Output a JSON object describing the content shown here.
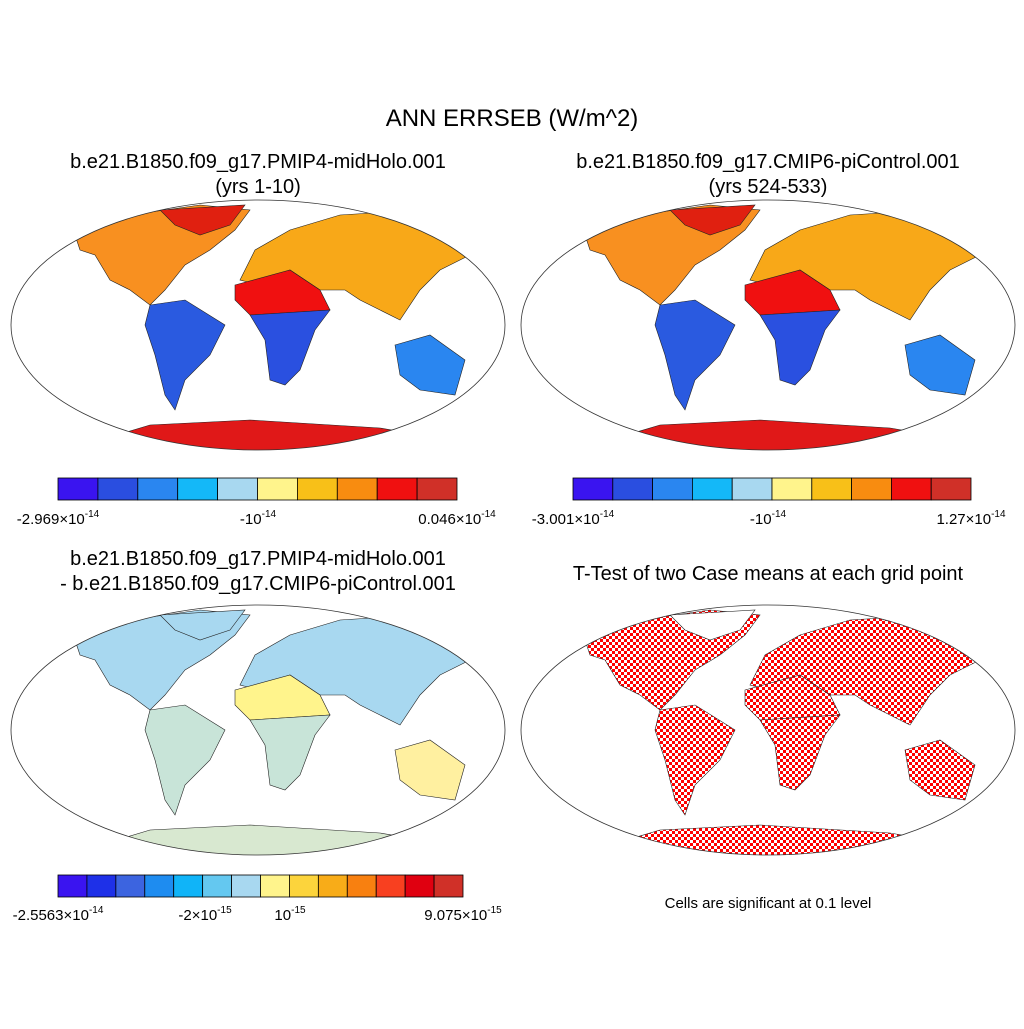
{
  "title": "ANN ERRSEB (W/m^2)",
  "panels": [
    {
      "title_lines": [
        "b.e21.B1850.f09_g17.PMIP4-midHolo.001",
        "(yrs 1-10)"
      ],
      "colorbar": {
        "colors": [
          "#3a14f0",
          "#2a4ee0",
          "#2a86f0",
          "#14b8f8",
          "#a8d8f0",
          "#fff48c",
          "#f8c018",
          "#f88c10",
          "#f01010",
          "#d03028"
        ],
        "labels": [
          {
            "base": "-2.969×10",
            "exp": "-14"
          },
          {
            "base": "-10",
            "exp": "-14"
          },
          {
            "base": "0.046×10",
            "exp": "-14"
          }
        ]
      }
    },
    {
      "title_lines": [
        "b.e21.B1850.f09_g17.CMIP6-piControl.001",
        "(yrs 524-533)"
      ],
      "colorbar": {
        "colors": [
          "#3a14f0",
          "#2a4ee0",
          "#2a86f0",
          "#14b8f8",
          "#a8d8f0",
          "#fff48c",
          "#f8c018",
          "#f88c10",
          "#f01010",
          "#d03028"
        ],
        "labels": [
          {
            "base": "-3.001×10",
            "exp": "-14"
          },
          {
            "base": "-10",
            "exp": "-14"
          },
          {
            "base": "1.27×10",
            "exp": "-14"
          }
        ]
      }
    },
    {
      "title_lines": [
        "b.e21.B1850.f09_g17.PMIP4-midHolo.001",
        "- b.e21.B1850.f09_g17.CMIP6-piControl.001"
      ],
      "colorbar": {
        "colors": [
          "#3a14f0",
          "#1e30e8",
          "#3c64e0",
          "#1e8cf0",
          "#10b4f8",
          "#64c8f0",
          "#a8d8f0",
          "#fff48c",
          "#fcd43c",
          "#f8ac18",
          "#f88010",
          "#f84020",
          "#e00010",
          "#d03028"
        ],
        "labels": [
          {
            "base": "-2.5563×10",
            "exp": "-14"
          },
          {
            "base": "-2×10",
            "exp": "-15"
          },
          {
            "base": "10",
            "exp": "-15"
          },
          {
            "base": "9.075×10",
            "exp": "-15"
          }
        ]
      }
    },
    {
      "title_lines": [
        "T-Test of two Case means at each grid point"
      ],
      "footnote": "Cells are significant at 0.1 level"
    }
  ]
}
